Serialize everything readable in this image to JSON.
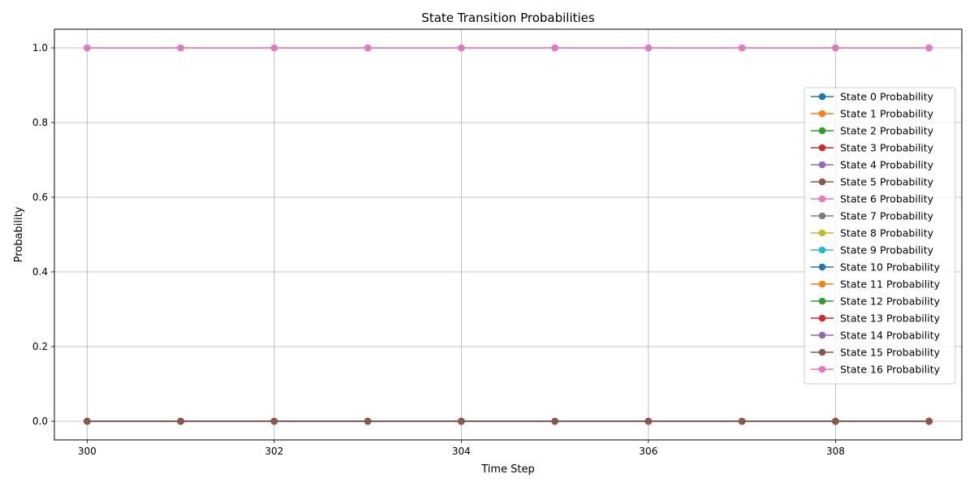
{
  "chart_data": {
    "type": "line",
    "title": "State Transition Probabilities",
    "xlabel": "Time Step",
    "ylabel": "Probability",
    "xlim": [
      299.65,
      309.35
    ],
    "ylim": [
      -0.05,
      1.05
    ],
    "xticks": [
      300,
      302,
      304,
      306,
      308
    ],
    "xtick_labels": [
      "300",
      "302",
      "304",
      "306",
      "308"
    ],
    "yticks": [
      0.0,
      0.2,
      0.4,
      0.6,
      0.8,
      1.0
    ],
    "ytick_labels": [
      "0.0",
      "0.2",
      "0.4",
      "0.6",
      "0.8",
      "1.0"
    ],
    "grid": true,
    "legend_position": "right",
    "marker": "circle",
    "x": [
      300,
      301,
      302,
      303,
      304,
      305,
      306,
      307,
      308,
      309
    ],
    "series": [
      {
        "name": "State 0 Probability",
        "color": "#1f77b4",
        "values": [
          0,
          0,
          0,
          0,
          0,
          0,
          0,
          0,
          0,
          0
        ]
      },
      {
        "name": "State 1 Probability",
        "color": "#ff7f0e",
        "values": [
          0,
          0,
          0,
          0,
          0,
          0,
          0,
          0,
          0,
          0
        ]
      },
      {
        "name": "State 2 Probability",
        "color": "#2ca02c",
        "values": [
          0,
          0,
          0,
          0,
          0,
          0,
          0,
          0,
          0,
          0
        ]
      },
      {
        "name": "State 3 Probability",
        "color": "#d62728",
        "values": [
          0,
          0,
          0,
          0,
          0,
          0,
          0,
          0,
          0,
          0
        ]
      },
      {
        "name": "State 4 Probability",
        "color": "#9467bd",
        "values": [
          0,
          0,
          0,
          0,
          0,
          0,
          0,
          0,
          0,
          0
        ]
      },
      {
        "name": "State 5 Probability",
        "color": "#8c564b",
        "values": [
          0,
          0,
          0,
          0,
          0,
          0,
          0,
          0,
          0,
          0
        ]
      },
      {
        "name": "State 6 Probability",
        "color": "#e377c2",
        "values": [
          1,
          1,
          1,
          1,
          1,
          1,
          1,
          1,
          1,
          1
        ]
      },
      {
        "name": "State 7 Probability",
        "color": "#7f7f7f",
        "values": [
          0,
          0,
          0,
          0,
          0,
          0,
          0,
          0,
          0,
          0
        ]
      },
      {
        "name": "State 8 Probability",
        "color": "#bcbd22",
        "values": [
          0,
          0,
          0,
          0,
          0,
          0,
          0,
          0,
          0,
          0
        ]
      },
      {
        "name": "State 9 Probability",
        "color": "#17becf",
        "values": [
          0,
          0,
          0,
          0,
          0,
          0,
          0,
          0,
          0,
          0
        ]
      },
      {
        "name": "State 10 Probability",
        "color": "#1f77b4",
        "values": [
          0,
          0,
          0,
          0,
          0,
          0,
          0,
          0,
          0,
          0
        ]
      },
      {
        "name": "State 11 Probability",
        "color": "#ff7f0e",
        "values": [
          0,
          0,
          0,
          0,
          0,
          0,
          0,
          0,
          0,
          0
        ]
      },
      {
        "name": "State 12 Probability",
        "color": "#2ca02c",
        "values": [
          0,
          0,
          0,
          0,
          0,
          0,
          0,
          0,
          0,
          0
        ]
      },
      {
        "name": "State 13 Probability",
        "color": "#d62728",
        "values": [
          0,
          0,
          0,
          0,
          0,
          0,
          0,
          0,
          0,
          0
        ]
      },
      {
        "name": "State 14 Probability",
        "color": "#9467bd",
        "values": [
          0,
          0,
          0,
          0,
          0,
          0,
          0,
          0,
          0,
          0
        ]
      },
      {
        "name": "State 15 Probability",
        "color": "#8c564b",
        "values": [
          0,
          0,
          0,
          0,
          0,
          0,
          0,
          0,
          0,
          0
        ]
      },
      {
        "name": "State 16 Probability",
        "color": "#e377c2",
        "values": [
          1,
          1,
          1,
          1,
          1,
          1,
          1,
          1,
          1,
          1
        ]
      }
    ]
  }
}
